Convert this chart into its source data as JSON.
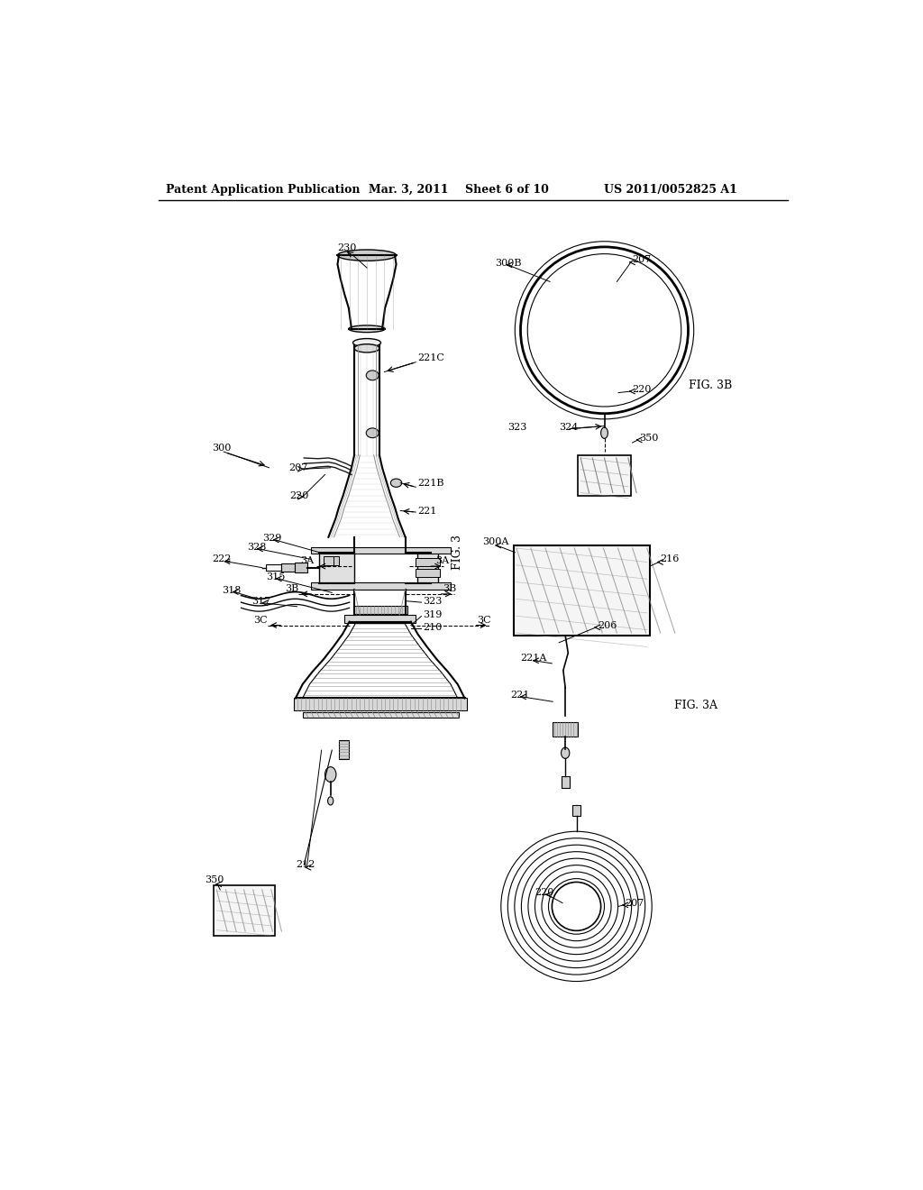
{
  "bg_color": "#ffffff",
  "line_color": "#000000",
  "gray_color": "#888888",
  "dark_gray": "#555555",
  "header_text": "Patent Application Publication",
  "header_date": "Mar. 3, 2011",
  "header_sheet": "Sheet 6 of 10",
  "header_patent": "US 2011/0052825 A1"
}
